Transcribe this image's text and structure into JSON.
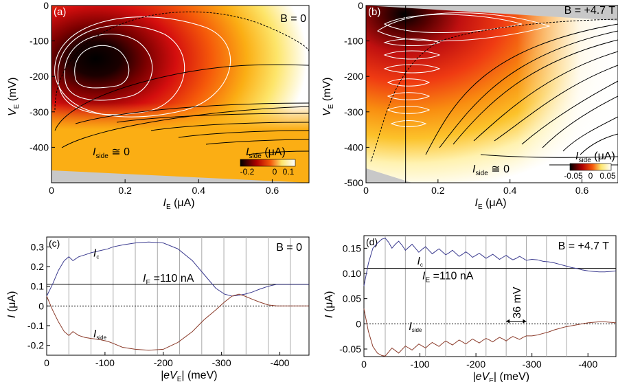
{
  "colors": {
    "hot_scale": [
      "#000000",
      "#7a0000",
      "#d40e0e",
      "#f5590a",
      "#fbae14",
      "#fde56a",
      "#ffffff"
    ],
    "ic_curve": "#3b3b8f",
    "iside_curve": "#8b3b2a",
    "grid": "#a9a9a9",
    "masked": "#c8c8c8"
  },
  "chart_data": [
    {
      "id": "a",
      "type": "heatmap",
      "panel_label": "(a)",
      "field_label": "B = 0",
      "xlabel_main": "I",
      "xlabel_sub": "E",
      "xlabel_unit": " (μA)",
      "ylabel_main": "V",
      "ylabel_sub": "E",
      "ylabel_unit": " (mV)",
      "xlim": [
        0,
        0.7
      ],
      "ylim": [
        -500,
        0
      ],
      "xticks": [
        {
          "v": 0,
          "label": "0"
        },
        {
          "v": 0.2,
          "label": "0.2"
        },
        {
          "v": 0.4,
          "label": "0.4"
        },
        {
          "v": 0.6,
          "label": "0.6"
        }
      ],
      "yticks": [
        {
          "v": 0,
          "label": "0"
        },
        {
          "v": -100,
          "label": "-100"
        },
        {
          "v": -200,
          "label": "-200"
        },
        {
          "v": -300,
          "label": "-300"
        },
        {
          "v": -400,
          "label": "-400"
        }
      ],
      "annotation_main": "I",
      "annotation_sub": "side",
      "annotation_rest": " ≅ 0",
      "colorbar": {
        "label_main": "I",
        "label_sub": "side",
        "label_unit": " (μA)",
        "ticks": [
          "-0.2",
          "0",
          "0.1"
        ],
        "range": [
          -0.25,
          0.15
        ]
      }
    },
    {
      "id": "b",
      "type": "heatmap",
      "panel_label": "(b)",
      "field_label": "B = +4.7 T",
      "xlabel_main": "I",
      "xlabel_sub": "E",
      "xlabel_unit": " (μA)",
      "ylabel_main": "V",
      "ylabel_sub": "E",
      "ylabel_unit": " (mV)",
      "xlim": [
        0,
        0.7
      ],
      "ylim": [
        -500,
        0
      ],
      "xticks": [
        {
          "v": 0,
          "label": "0"
        },
        {
          "v": 0.2,
          "label": "0.2"
        },
        {
          "v": 0.4,
          "label": "0.4"
        },
        {
          "v": 0.6,
          "label": "0.6"
        }
      ],
      "yticks": [
        {
          "v": 0,
          "label": "0"
        },
        {
          "v": -100,
          "label": "-100"
        },
        {
          "v": -200,
          "label": "-200"
        },
        {
          "v": -300,
          "label": "-300"
        },
        {
          "v": -400,
          "label": "-400"
        },
        {
          "v": -500,
          "label": "-500"
        }
      ],
      "annotation_main": "I",
      "annotation_sub": "side",
      "annotation_rest": " ≅ 0",
      "marker_line_x": 0.11,
      "colorbar": {
        "label_main": "I",
        "label_sub": "side",
        "label_unit": " (μA)",
        "ticks": [
          "-0.05",
          "0",
          "0.05"
        ],
        "range": [
          -0.06,
          0.06
        ]
      }
    },
    {
      "id": "c",
      "type": "line",
      "panel_label": "(c)",
      "field_label": "B = 0",
      "xlabel_main": "|eV",
      "xlabel_sub": "E",
      "xlabel_unit": "| (meV)",
      "ylabel_main": "I",
      "ylabel_unit": " (μA)",
      "xlim": [
        0,
        -450
      ],
      "ylim": [
        -0.25,
        0.35
      ],
      "xticks": [
        {
          "v": 0,
          "label": "0"
        },
        {
          "v": -100,
          "label": "-100"
        },
        {
          "v": -200,
          "label": "-200"
        },
        {
          "v": -300,
          "label": "-300"
        },
        {
          "v": -400,
          "label": "-400"
        }
      ],
      "yticks": [
        {
          "v": 0.3,
          "label": "0.3"
        },
        {
          "v": 0.2,
          "label": "0.2"
        },
        {
          "v": 0.1,
          "label": "0.1"
        },
        {
          "v": 0,
          "label": "0"
        },
        {
          "v": -0.1,
          "label": "-0.1"
        },
        {
          "v": -0.2,
          "label": "-0.2"
        }
      ],
      "grid_x": [
        -38,
        -76,
        -114,
        -152,
        -190,
        -228,
        -266,
        -304,
        -342,
        -380,
        -418
      ],
      "hline_ie": 0.11,
      "ie_label_main": "I",
      "ie_label_sub": "E",
      "ie_label_rest": " =110 nA",
      "series": [
        {
          "name_main": "I",
          "name_sub": "c",
          "label_x": -80,
          "label_y": 0.25,
          "x": [
            0,
            -10,
            -20,
            -30,
            -38,
            -45,
            -55,
            -66,
            -76,
            -90,
            -105,
            -114,
            -130,
            -152,
            -175,
            -200,
            -225,
            -250,
            -270,
            -290,
            -305,
            -318,
            -330,
            -340,
            -352,
            -365,
            -380,
            -395,
            -420,
            -450
          ],
          "y": [
            0.05,
            0.11,
            0.18,
            0.23,
            0.25,
            0.23,
            0.25,
            0.26,
            0.27,
            0.28,
            0.29,
            0.3,
            0.31,
            0.32,
            0.325,
            0.32,
            0.29,
            0.23,
            0.16,
            0.09,
            0.06,
            0.05,
            0.055,
            0.06,
            0.07,
            0.085,
            0.1,
            0.11,
            0.11,
            0.11
          ]
        },
        {
          "name_main": "I",
          "name_sub": "side",
          "label_x": -80,
          "label_y": -0.16,
          "x": [
            0,
            -10,
            -20,
            -30,
            -38,
            -45,
            -55,
            -66,
            -76,
            -90,
            -105,
            -114,
            -130,
            -152,
            -175,
            -200,
            -225,
            -250,
            -270,
            -290,
            -305,
            -318,
            -330,
            -340,
            -352,
            -365,
            -380,
            -395,
            -420,
            -450
          ],
          "y": [
            0.05,
            -0.02,
            -0.08,
            -0.13,
            -0.15,
            -0.13,
            -0.15,
            -0.16,
            -0.165,
            -0.17,
            -0.18,
            -0.19,
            -0.21,
            -0.22,
            -0.225,
            -0.22,
            -0.185,
            -0.13,
            -0.07,
            -0.02,
            0.02,
            0.05,
            0.06,
            0.05,
            0.035,
            0.02,
            0.005,
            0.0,
            0.0,
            0.0
          ]
        }
      ]
    },
    {
      "id": "d",
      "type": "line",
      "panel_label": "(d)",
      "field_label": "B = +4.7 T",
      "xlabel_main": "|eV",
      "xlabel_sub": "E",
      "xlabel_unit": "| (meV)",
      "ylabel_main": "I",
      "ylabel_unit": " (μA)",
      "xlim": [
        0,
        -450
      ],
      "ylim": [
        -0.065,
        0.175
      ],
      "xticks": [
        {
          "v": 0,
          "label": "0"
        },
        {
          "v": -100,
          "label": "-100"
        },
        {
          "v": -200,
          "label": "-200"
        },
        {
          "v": -300,
          "label": "-300"
        },
        {
          "v": -400,
          "label": "-400"
        }
      ],
      "yticks": [
        {
          "v": 0.15,
          "label": "0.15"
        },
        {
          "v": 0.1,
          "label": "0.10"
        },
        {
          "v": 0.05,
          "label": "0.05"
        },
        {
          "v": 0,
          "label": "0"
        },
        {
          "v": -0.05,
          "label": "-0.05"
        }
      ],
      "grid_x": [
        -38,
        -74,
        -110,
        -146,
        -182,
        -218,
        -254,
        -290,
        -326,
        -362
      ],
      "hline_ie": 0.11,
      "ie_label_main": "I",
      "ie_label_sub": "E",
      "ie_label_rest": " =110 nA",
      "spacing_label": "36 mV",
      "spacing_from": -254,
      "spacing_to": -290,
      "spacing_y": 0.005,
      "series": [
        {
          "name_main": "I",
          "name_sub": "c",
          "label_x": -95,
          "label_y": 0.118,
          "x": [
            0,
            -8,
            -16,
            -24,
            -32,
            -38,
            -44,
            -50,
            -56,
            -62,
            -68,
            -74,
            -80,
            -86,
            -92,
            -98,
            -104,
            -110,
            -116,
            -122,
            -128,
            -134,
            -140,
            -146,
            -152,
            -158,
            -164,
            -170,
            -176,
            -182,
            -188,
            -194,
            -200,
            -206,
            -212,
            -218,
            -224,
            -230,
            -236,
            -242,
            -248,
            -254,
            -260,
            -266,
            -272,
            -278,
            -284,
            -290,
            -300,
            -310,
            -320,
            -330,
            -340,
            -350,
            -360,
            -370,
            -380,
            -390,
            -400,
            -410,
            -420,
            -430,
            -440,
            -450
          ],
          "y": [
            0.075,
            0.12,
            0.15,
            0.16,
            0.168,
            0.17,
            0.162,
            0.15,
            0.158,
            0.164,
            0.156,
            0.146,
            0.152,
            0.158,
            0.15,
            0.142,
            0.148,
            0.153,
            0.146,
            0.139,
            0.144,
            0.149,
            0.143,
            0.137,
            0.141,
            0.146,
            0.14,
            0.134,
            0.138,
            0.143,
            0.138,
            0.132,
            0.136,
            0.14,
            0.135,
            0.13,
            0.134,
            0.138,
            0.133,
            0.128,
            0.132,
            0.136,
            0.131,
            0.127,
            0.13,
            0.134,
            0.13,
            0.126,
            0.128,
            0.127,
            0.124,
            0.123,
            0.121,
            0.118,
            0.115,
            0.112,
            0.11,
            0.107,
            0.105,
            0.104,
            0.103,
            0.103,
            0.104,
            0.105
          ]
        },
        {
          "name_main": "I",
          "name_sub": "side",
          "label_x": -80,
          "label_y": -0.012,
          "x": [
            0,
            -8,
            -16,
            -24,
            -32,
            -38,
            -44,
            -50,
            -56,
            -62,
            -68,
            -74,
            -80,
            -86,
            -92,
            -98,
            -104,
            -110,
            -116,
            -122,
            -128,
            -134,
            -140,
            -146,
            -152,
            -158,
            -164,
            -170,
            -176,
            -182,
            -188,
            -194,
            -200,
            -206,
            -212,
            -218,
            -224,
            -230,
            -236,
            -242,
            -248,
            -254,
            -260,
            -266,
            -272,
            -278,
            -284,
            -290,
            -300,
            -310,
            -320,
            -330,
            -340,
            -350,
            -360,
            -370,
            -380,
            -390,
            -400,
            -410,
            -420,
            -430,
            -440,
            -450
          ],
          "y": [
            0.03,
            -0.015,
            -0.045,
            -0.058,
            -0.063,
            -0.064,
            -0.056,
            -0.048,
            -0.053,
            -0.058,
            -0.051,
            -0.044,
            -0.048,
            -0.052,
            -0.046,
            -0.04,
            -0.044,
            -0.048,
            -0.042,
            -0.037,
            -0.041,
            -0.045,
            -0.039,
            -0.034,
            -0.038,
            -0.042,
            -0.037,
            -0.032,
            -0.036,
            -0.04,
            -0.035,
            -0.03,
            -0.034,
            -0.038,
            -0.033,
            -0.029,
            -0.032,
            -0.036,
            -0.031,
            -0.027,
            -0.03,
            -0.034,
            -0.029,
            -0.025,
            -0.028,
            -0.031,
            -0.027,
            -0.024,
            -0.024,
            -0.022,
            -0.019,
            -0.016,
            -0.012,
            -0.009,
            -0.006,
            -0.004,
            -0.002,
            0.0,
            0.002,
            0.003,
            0.004,
            0.004,
            0.003,
            0.002
          ]
        }
      ]
    }
  ]
}
